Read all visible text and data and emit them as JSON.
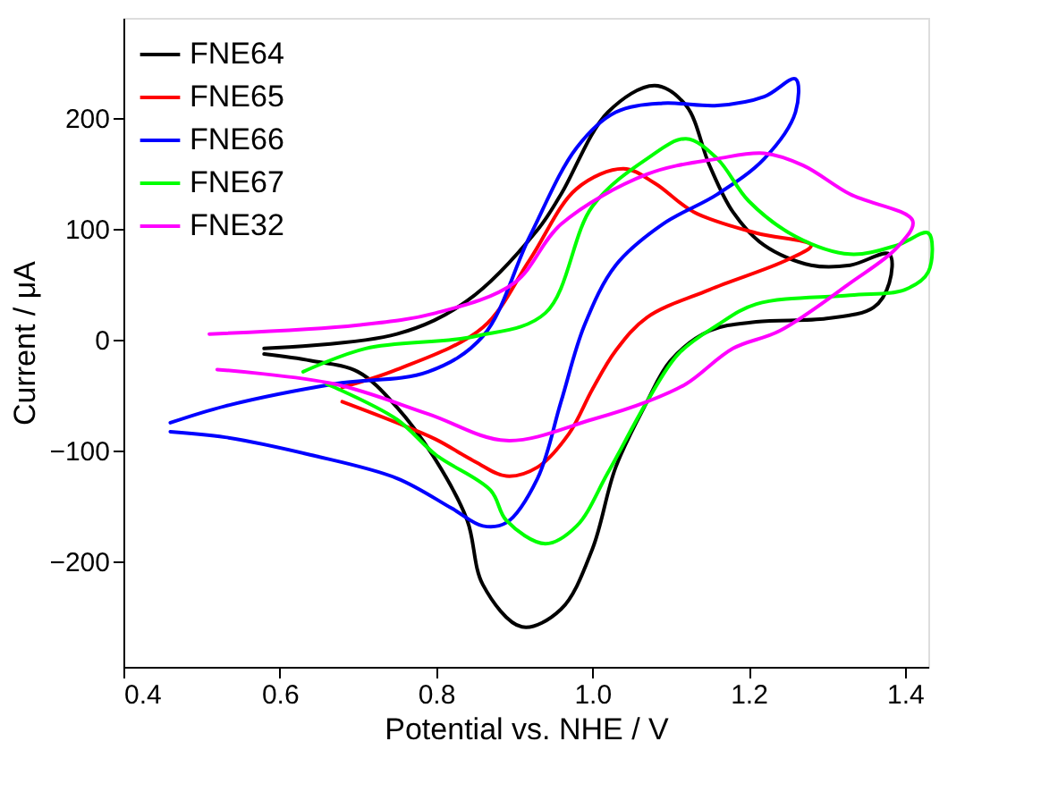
{
  "chart_data": {
    "type": "line",
    "xlabel": "Potential vs. NHE  / V",
    "ylabel": "Current / μA",
    "xlim": [
      0.4,
      1.43
    ],
    "ylim": [
      -295,
      290
    ],
    "xticks": [
      0.4,
      0.6,
      0.8,
      {
        "value": 1,
        "label": "1.0"
      },
      1.2,
      1.4
    ],
    "yticks": [
      -200,
      -100,
      0,
      100,
      200
    ],
    "grid": false,
    "legend": "top left",
    "line_style": "solid",
    "marker": "none",
    "series": [
      {
        "name": "FNE64",
        "color": "#000000",
        "x": [
          0.58,
          0.75,
          0.84,
          0.93,
          0.96,
          1.02,
          1.08,
          1.12,
          1.15,
          1.18,
          1.22,
          1.28,
          1.33,
          1.38,
          1.38,
          1.36,
          1.3,
          1.21,
          1.15,
          1.1,
          1.07,
          1.03,
          1.0,
          0.96,
          0.91,
          0.86,
          0.84,
          0.8,
          0.75,
          0.7,
          0.64,
          0.58
        ],
        "values": [
          -8,
          5,
          35,
          99,
          131,
          205,
          229,
          211,
          157,
          115,
          85,
          67,
          67,
          77,
          51,
          29,
          19,
          16,
          8,
          -19,
          -56,
          -115,
          -189,
          -243,
          -259,
          -221,
          -163,
          -109,
          -61,
          -29,
          -19,
          -13
        ]
      },
      {
        "name": "FNE65",
        "color": "#ff0000",
        "x": [
          0.68,
          0.75,
          0.86,
          0.92,
          0.98,
          1.04,
          1.08,
          1.13,
          1.21,
          1.28,
          1.25,
          1.15,
          1.07,
          1.03,
          1.0,
          0.97,
          0.93,
          0.89,
          0.85,
          0.8,
          0.75,
          0.68
        ],
        "values": [
          -43,
          -27,
          11,
          72,
          136,
          154,
          141,
          115,
          96,
          85,
          72,
          45,
          20,
          -10,
          -45,
          -85,
          -115,
          -123,
          -110,
          -90,
          -75,
          -56
        ]
      },
      {
        "name": "FNE66",
        "color": "#0000ff",
        "x": [
          0.46,
          0.53,
          0.67,
          0.79,
          0.86,
          0.92,
          0.98,
          1.03,
          1.09,
          1.16,
          1.22,
          1.26,
          1.26,
          1.22,
          1.16,
          1.09,
          1.03,
          0.99,
          0.96,
          0.93,
          0.89,
          0.86,
          0.82,
          0.75,
          0.64,
          0.53,
          0.46
        ],
        "values": [
          -75,
          -60,
          -40,
          -29,
          3,
          93,
          173,
          205,
          213,
          211,
          219,
          235,
          205,
          163,
          131,
          104,
          67,
          13,
          -56,
          -125,
          -165,
          -168,
          -152,
          -125,
          -104,
          -88,
          -83
        ]
      },
      {
        "name": "FNE67",
        "color": "#00ff00",
        "x": [
          0.63,
          0.71,
          0.85,
          0.94,
          1.0,
          1.07,
          1.12,
          1.16,
          1.2,
          1.26,
          1.33,
          1.39,
          1.43,
          1.43,
          1.4,
          1.33,
          1.21,
          1.16,
          1.11,
          1.07,
          1.02,
          0.98,
          0.94,
          0.89,
          0.87,
          0.8,
          0.75,
          0.67,
          0.66
        ],
        "values": [
          -29,
          -8,
          3,
          24,
          120,
          163,
          181,
          163,
          125,
          93,
          77,
          85,
          96,
          61,
          45,
          40,
          32,
          13,
          -13,
          -56,
          -120,
          -168,
          -184,
          -163,
          -136,
          -104,
          -72,
          -43,
          -40
        ]
      },
      {
        "name": "FNE32",
        "color": "#ff00ff",
        "x": [
          0.51,
          0.7,
          0.8,
          0.9,
          0.96,
          1.07,
          1.16,
          1.22,
          1.27,
          1.33,
          1.41,
          1.39,
          1.33,
          1.24,
          1.18,
          1.12,
          1.07,
          1.0,
          0.89,
          0.79,
          0.67,
          0.52
        ],
        "values": [
          5,
          13,
          24,
          51,
          104,
          149,
          163,
          168,
          157,
          131,
          107,
          83,
          51,
          8,
          -8,
          -40,
          -56,
          -72,
          -91,
          -67,
          -40,
          -27
        ]
      }
    ]
  }
}
